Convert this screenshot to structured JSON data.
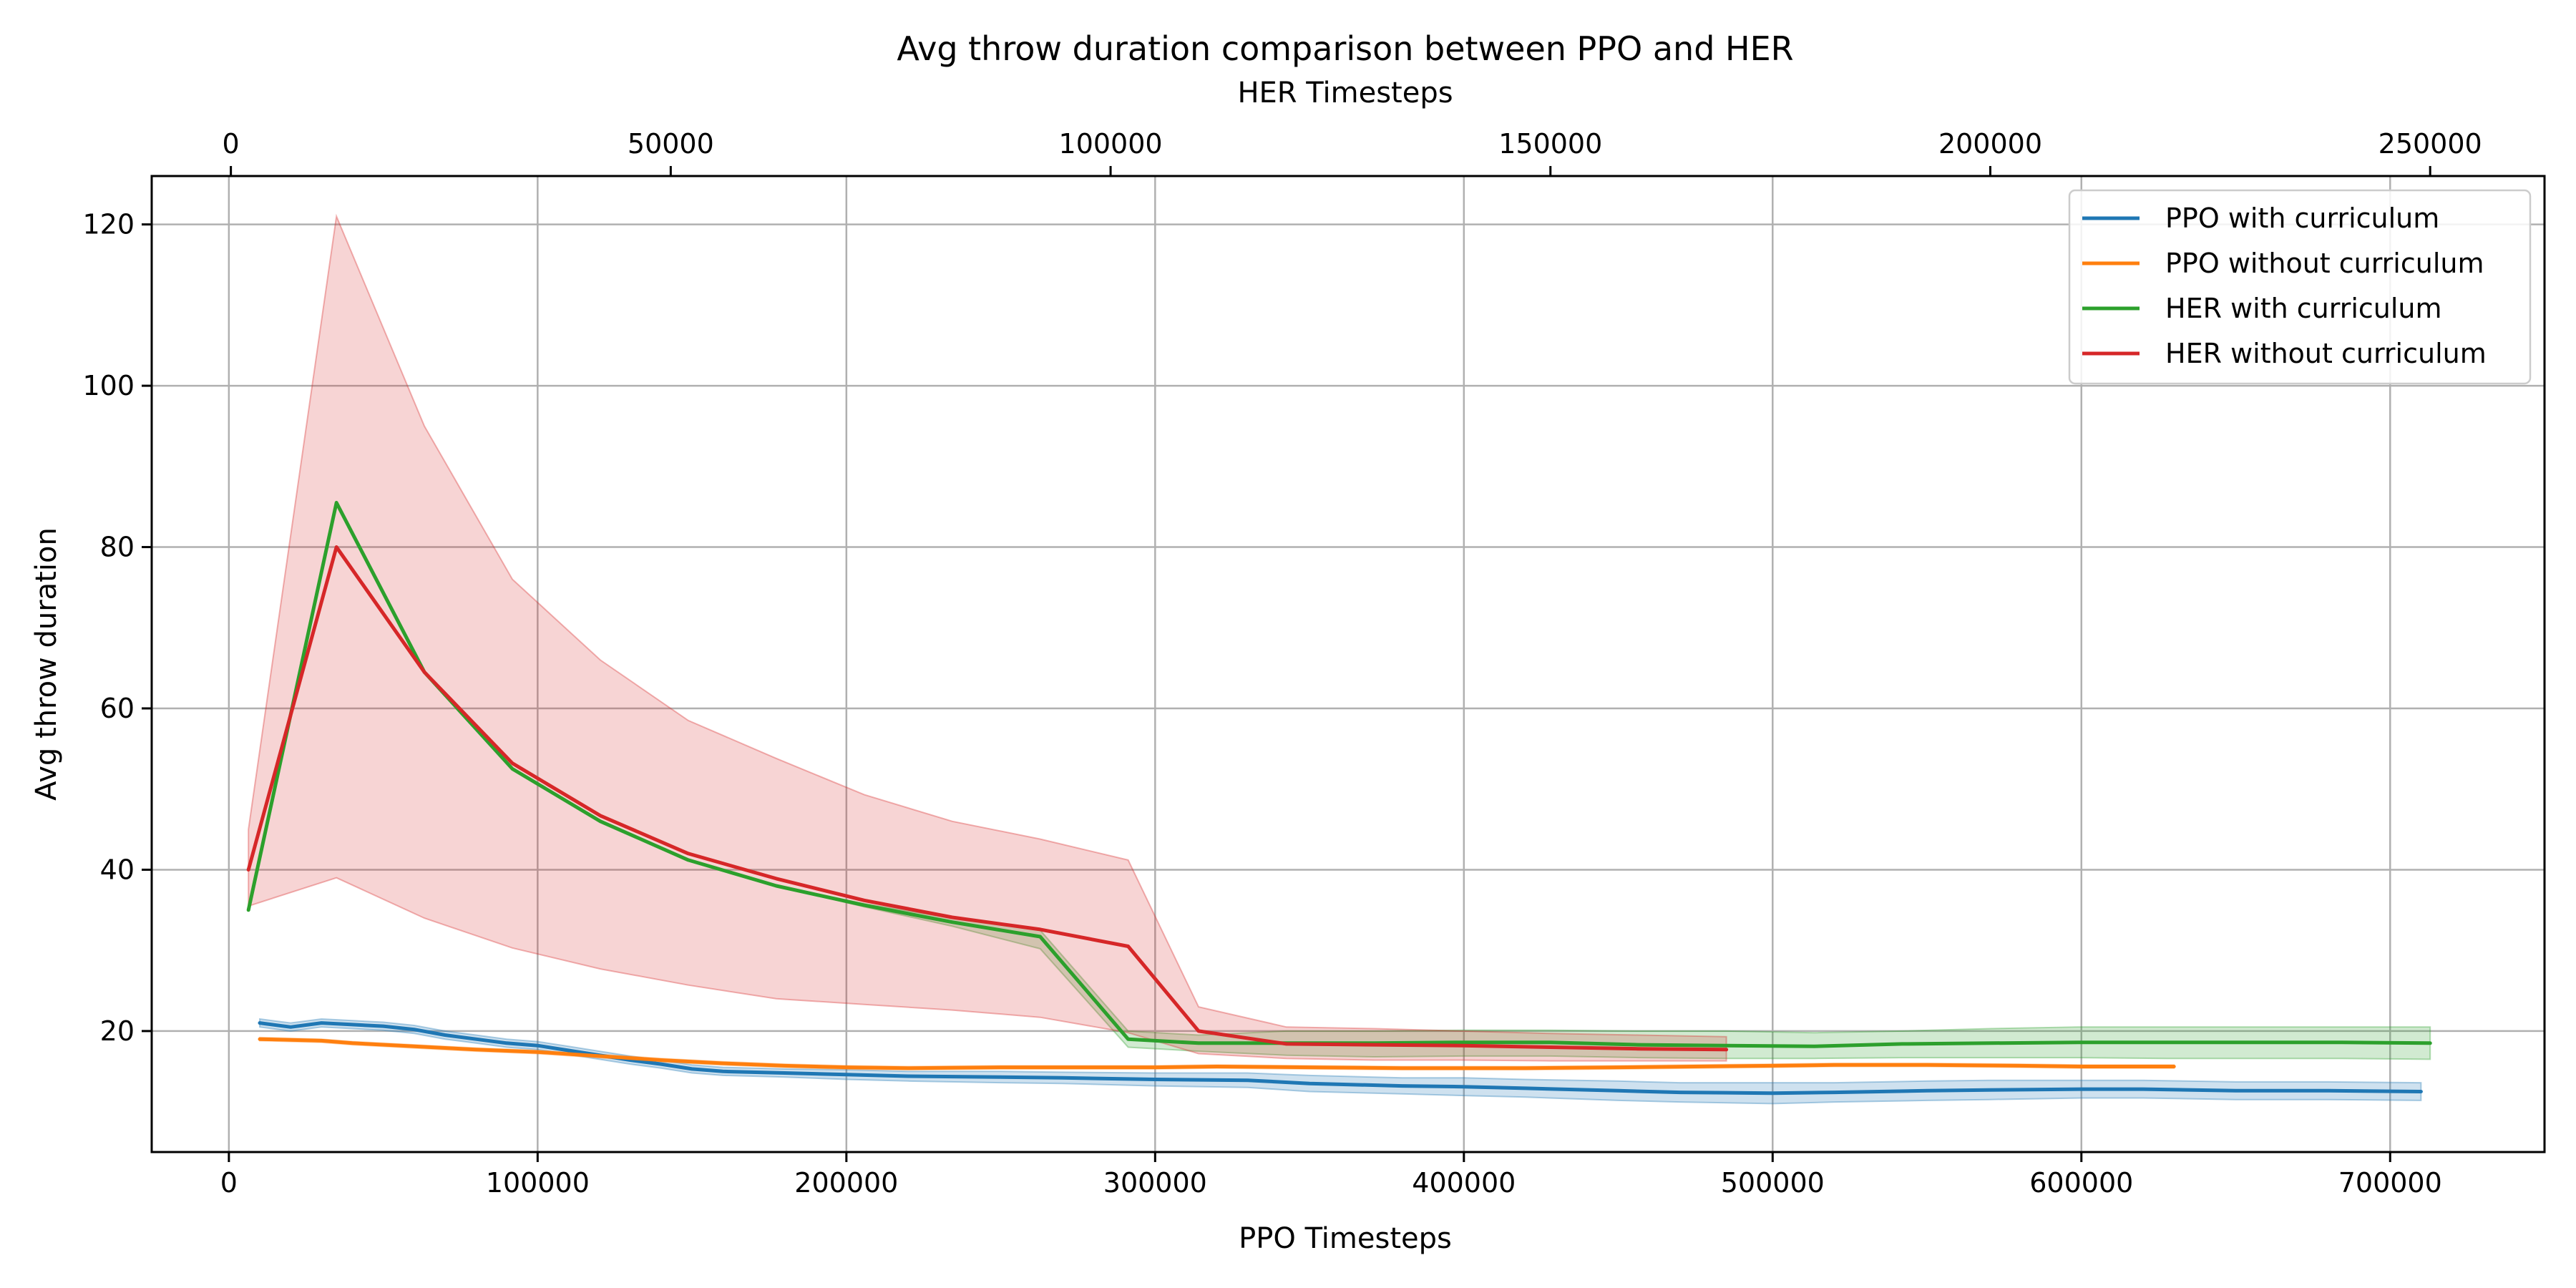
{
  "chart_data": {
    "type": "line",
    "title": "Avg throw duration comparison between PPO and HER",
    "xlabel": "PPO Timesteps",
    "x2label": "HER Timesteps",
    "ylabel": "Avg throw duration",
    "xlim": [
      -25000,
      750000
    ],
    "x2lim": [
      -9000,
      263000
    ],
    "ylim": [
      5,
      126
    ],
    "xticks": [
      0,
      100000,
      200000,
      300000,
      400000,
      500000,
      600000,
      700000
    ],
    "x2ticks": [
      0,
      50000,
      100000,
      150000,
      200000,
      250000
    ],
    "yticks": [
      20,
      40,
      60,
      80,
      100,
      120
    ],
    "grid": true,
    "legend_position": "top-right",
    "series": [
      {
        "name": "PPO with curriculum",
        "color": "#1f77b4",
        "axis": "ppo",
        "x": [
          10000,
          20000,
          30000,
          40000,
          50000,
          60000,
          70000,
          80000,
          90000,
          100000,
          110000,
          120000,
          130000,
          140000,
          150000,
          160000,
          180000,
          200000,
          220000,
          250000,
          270000,
          300000,
          330000,
          350000,
          380000,
          400000,
          420000,
          450000,
          470000,
          500000,
          520000,
          550000,
          570000,
          600000,
          620000,
          650000,
          680000,
          710000
        ],
        "y": [
          21,
          20.5,
          21,
          20.8,
          20.6,
          20.2,
          19.5,
          19,
          18.5,
          18.2,
          17.6,
          17.0,
          16.4,
          15.9,
          15.3,
          15.0,
          14.8,
          14.6,
          14.4,
          14.3,
          14.2,
          14.0,
          13.9,
          13.5,
          13.2,
          13.1,
          12.9,
          12.6,
          12.4,
          12.3,
          12.4,
          12.6,
          12.7,
          12.8,
          12.8,
          12.6,
          12.6,
          12.5
        ],
        "band_lower": [
          20.5,
          20.0,
          20.5,
          20.3,
          20.1,
          19.7,
          19.0,
          18.5,
          18.0,
          17.7,
          17.1,
          16.5,
          15.9,
          15.4,
          14.8,
          14.5,
          14.3,
          14.0,
          13.8,
          13.6,
          13.5,
          13.2,
          13.0,
          12.5,
          12.2,
          12.0,
          11.8,
          11.4,
          11.2,
          11.0,
          11.2,
          11.4,
          11.5,
          11.7,
          11.7,
          11.5,
          11.5,
          11.4
        ],
        "band_upper": [
          21.5,
          21.0,
          21.5,
          21.3,
          21.1,
          20.7,
          20.0,
          19.5,
          19.0,
          18.7,
          18.1,
          17.5,
          16.9,
          16.4,
          15.8,
          15.5,
          15.3,
          15.2,
          15.0,
          15.0,
          14.9,
          14.8,
          14.8,
          14.5,
          14.2,
          14.2,
          14.0,
          13.8,
          13.6,
          13.6,
          13.6,
          13.8,
          13.9,
          13.9,
          13.9,
          13.7,
          13.7,
          13.6
        ]
      },
      {
        "name": "PPO without curriculum",
        "color": "#ff7f0e",
        "axis": "ppo",
        "x": [
          10000,
          20000,
          30000,
          40000,
          60000,
          80000,
          100000,
          120000,
          140000,
          160000,
          180000,
          200000,
          220000,
          250000,
          280000,
          300000,
          320000,
          350000,
          380000,
          400000,
          420000,
          450000,
          500000,
          520000,
          550000,
          580000,
          600000,
          630000
        ],
        "y": [
          19.0,
          18.9,
          18.8,
          18.5,
          18.1,
          17.7,
          17.4,
          16.9,
          16.4,
          16.0,
          15.7,
          15.5,
          15.4,
          15.5,
          15.5,
          15.5,
          15.6,
          15.5,
          15.4,
          15.4,
          15.4,
          15.5,
          15.7,
          15.8,
          15.8,
          15.7,
          15.6,
          15.6
        ],
        "band_lower": [
          18.8,
          18.7,
          18.6,
          18.3,
          17.9,
          17.5,
          17.2,
          16.7,
          16.2,
          15.8,
          15.5,
          15.3,
          15.2,
          15.3,
          15.3,
          15.3,
          15.4,
          15.3,
          15.2,
          15.2,
          15.2,
          15.3,
          15.5,
          15.6,
          15.6,
          15.5,
          15.4,
          15.4
        ],
        "band_upper": [
          19.2,
          19.1,
          19.0,
          18.7,
          18.3,
          17.9,
          17.6,
          17.1,
          16.6,
          16.2,
          15.9,
          15.7,
          15.6,
          15.7,
          15.7,
          15.7,
          15.8,
          15.7,
          15.6,
          15.6,
          15.6,
          15.7,
          15.9,
          16.0,
          16.0,
          15.9,
          15.8,
          15.8
        ]
      },
      {
        "name": "HER with curriculum",
        "color": "#2ca02c",
        "axis": "her",
        "x": [
          2000,
          12000,
          22000,
          32000,
          42000,
          52000,
          62000,
          72000,
          82000,
          92000,
          102000,
          110000,
          120000,
          130000,
          140000,
          150000,
          160000,
          170000,
          180000,
          190000,
          200000,
          210000,
          220000,
          230000,
          240000,
          250000,
          250000
        ],
        "y": [
          35,
          85.5,
          64.5,
          52.5,
          46,
          41.2,
          38,
          35.6,
          33.5,
          31.7,
          19,
          18.5,
          18.5,
          18.5,
          18.6,
          18.6,
          18.3,
          18.2,
          18.1,
          18.4,
          18.5,
          18.6,
          18.6,
          18.6,
          18.6,
          18.5,
          18.5
        ],
        "band_lower": [
          35,
          85.5,
          64.5,
          52.5,
          46,
          41.2,
          38,
          35.4,
          33.0,
          30.2,
          18.0,
          17.5,
          17.0,
          16.8,
          16.9,
          16.9,
          16.7,
          16.6,
          16.6,
          16.7,
          16.7,
          16.7,
          16.6,
          16.6,
          16.6,
          16.5,
          16.5
        ],
        "band_upper": [
          35,
          85.5,
          64.5,
          52.5,
          46,
          41.2,
          38,
          35.8,
          34.0,
          32.5,
          20.0,
          19.5,
          20.0,
          20.0,
          20.1,
          20.1,
          20.0,
          20.0,
          19.8,
          20.0,
          20.3,
          20.5,
          20.5,
          20.5,
          20.5,
          20.5,
          20.5
        ]
      },
      {
        "name": "HER without curriculum",
        "color": "#d62728",
        "axis": "her",
        "x": [
          2000,
          12000,
          22000,
          32000,
          42000,
          52000,
          62000,
          72000,
          82000,
          92000,
          102000,
          110000,
          120000,
          130000,
          140000,
          150000,
          160000,
          170000
        ],
        "y": [
          40,
          80,
          64.5,
          53.2,
          46.7,
          42,
          38.9,
          36.2,
          34.1,
          32.6,
          30.5,
          20,
          18.4,
          18.3,
          18.2,
          18.0,
          17.8,
          17.7
        ],
        "band_lower": [
          35.5,
          39,
          34,
          30.3,
          27.7,
          25.7,
          24,
          23.3,
          22.6,
          21.7,
          19.8,
          17.2,
          16.6,
          16.4,
          16.4,
          16.3,
          16.3,
          16.3
        ],
        "band_upper": [
          45,
          121,
          95,
          76,
          66,
          58.5,
          53.8,
          49.3,
          46,
          43.8,
          41.2,
          23,
          20.5,
          20.3,
          20.0,
          19.7,
          19.5,
          19.3
        ]
      }
    ]
  }
}
